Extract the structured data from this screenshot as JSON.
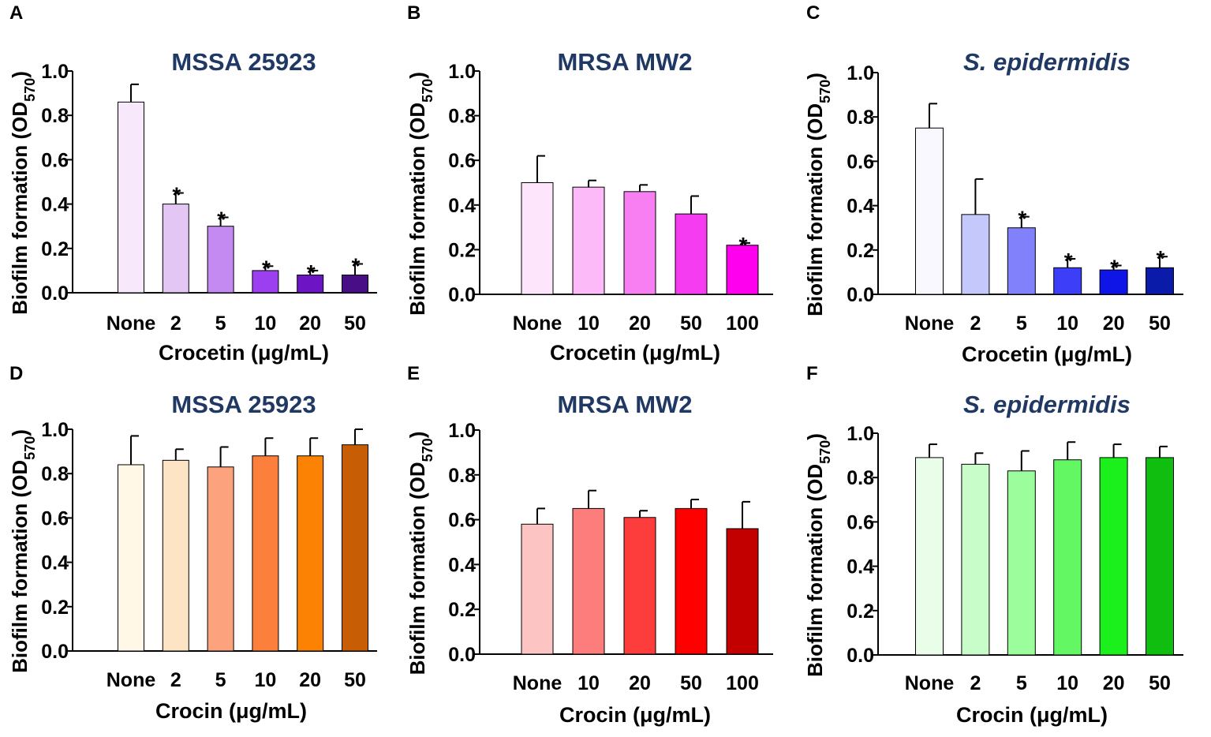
{
  "figure": {
    "title_color": "#1f3864",
    "axis_color": "#000000",
    "error_bar_color": "#000000"
  },
  "chart_data": [
    {
      "panel": "A",
      "type": "bar",
      "title": "MSSA 25923",
      "title_italic": false,
      "ylabel": "Biofilm formation (OD570)",
      "ylabel_main": "Biofilm formation (OD",
      "ylabel_sub": "570",
      "ylabel_close": ")",
      "xlabel": "Crocetin (μg/mL)",
      "categories": [
        "None",
        "2",
        "5",
        "10",
        "20",
        "50"
      ],
      "values": [
        0.86,
        0.4,
        0.3,
        0.1,
        0.08,
        0.08
      ],
      "errors": [
        0.08,
        0.05,
        0.04,
        0.02,
        0.02,
        0.05
      ],
      "significant": [
        false,
        true,
        true,
        true,
        true,
        true
      ],
      "marker": "*",
      "colors": [
        "#f7e9fb",
        "#e4c6f5",
        "#c48af2",
        "#9b3ff0",
        "#6d14c4",
        "#480e86"
      ],
      "ylim": [
        0,
        1.0
      ],
      "yticks": [
        "0.0",
        "0.2",
        "0.4",
        "0.6",
        "0.8",
        "1.0"
      ]
    },
    {
      "panel": "B",
      "type": "bar",
      "title": "MRSA MW2",
      "title_italic": false,
      "ylabel": "Biofilm formation (OD570)",
      "ylabel_main": "Biofilm formation (OD",
      "ylabel_sub": "570",
      "ylabel_close": ")",
      "xlabel": "Crocetin (μg/mL)",
      "categories": [
        "None",
        "10",
        "20",
        "50",
        "100"
      ],
      "values": [
        0.5,
        0.48,
        0.46,
        0.36,
        0.22
      ],
      "errors": [
        0.12,
        0.03,
        0.03,
        0.08,
        0.01
      ],
      "significant": [
        false,
        false,
        false,
        false,
        true
      ],
      "marker": "*",
      "colors": [
        "#fde6fb",
        "#fcbaf8",
        "#f77ff2",
        "#f53cf0",
        "#ff00ee"
      ],
      "ylim": [
        0,
        1.0
      ],
      "yticks": [
        "0.0",
        "0.2",
        "0.4",
        "0.6",
        "0.8",
        "1.0"
      ]
    },
    {
      "panel": "C",
      "type": "bar",
      "title": "S. epidermidis",
      "title_italic": true,
      "ylabel": "Biofilm formation (OD570)",
      "ylabel_main": "Biofilm formation (OD",
      "ylabel_sub": "570",
      "ylabel_close": ")",
      "xlabel": "Crocetin (μg/mL)",
      "categories": [
        "None",
        "2",
        "5",
        "10",
        "20",
        "50"
      ],
      "values": [
        0.75,
        0.36,
        0.3,
        0.12,
        0.11,
        0.12
      ],
      "errors": [
        0.11,
        0.16,
        0.05,
        0.04,
        0.02,
        0.05
      ],
      "significant": [
        false,
        false,
        true,
        true,
        true,
        true
      ],
      "marker": "*",
      "colors": [
        "#f8f8fe",
        "#c5c8fb",
        "#8081fb",
        "#3c3ff7",
        "#0f15e6",
        "#0a1aa9"
      ],
      "ylim": [
        0,
        1.0
      ],
      "yticks": [
        "0.0",
        "0.2",
        "0.4",
        "0.6",
        "0.8",
        "1.0"
      ]
    },
    {
      "panel": "D",
      "type": "bar",
      "title": "MSSA 25923",
      "title_italic": false,
      "ylabel": "Biofilm formation (OD570)",
      "ylabel_main": "Biofilm formation (OD",
      "ylabel_sub": "570",
      "ylabel_close": ")",
      "xlabel": "Crocin (μg/mL)",
      "categories": [
        "None",
        "2",
        "5",
        "10",
        "20",
        "50"
      ],
      "values": [
        0.84,
        0.86,
        0.83,
        0.88,
        0.88,
        0.93
      ],
      "errors": [
        0.13,
        0.05,
        0.09,
        0.08,
        0.08,
        0.07
      ],
      "significant": [
        false,
        false,
        false,
        false,
        false,
        false
      ],
      "marker": "*",
      "colors": [
        "#fff8e6",
        "#fde4c4",
        "#fca37e",
        "#fc7f3c",
        "#fb8203",
        "#c75e05"
      ],
      "ylim": [
        0,
        1.0
      ],
      "yticks": [
        "0.0",
        "0.2",
        "0.4",
        "0.6",
        "0.8",
        "1.0"
      ]
    },
    {
      "panel": "E",
      "type": "bar",
      "title": "MRSA MW2",
      "title_italic": false,
      "ylabel": "Biofilm formation (OD570)",
      "ylabel_main": "Biofilm formation (OD",
      "ylabel_sub": "570",
      "ylabel_close": ")",
      "xlabel": "Crocin (μg/mL)",
      "categories": [
        "None",
        "10",
        "20",
        "50",
        "100"
      ],
      "values": [
        0.58,
        0.65,
        0.61,
        0.65,
        0.56
      ],
      "errors": [
        0.07,
        0.08,
        0.03,
        0.04,
        0.12
      ],
      "significant": [
        false,
        false,
        false,
        false,
        false
      ],
      "marker": "*",
      "colors": [
        "#fdc4c4",
        "#fd7d7d",
        "#fd3c3c",
        "#fe0000",
        "#c20000"
      ],
      "ylim": [
        0,
        1.0
      ],
      "yticks": [
        "0.0",
        "0.2",
        "0.4",
        "0.6",
        "0.8",
        "1.0"
      ]
    },
    {
      "panel": "F",
      "type": "bar",
      "title": "S. epidermidis",
      "title_italic": true,
      "ylabel": "Biofilm formation (OD570)",
      "ylabel_main": "Biofilm formation (OD",
      "ylabel_sub": "570",
      "ylabel_close": ")",
      "xlabel": "Crocin (μg/mL)",
      "categories": [
        "None",
        "2",
        "5",
        "10",
        "20",
        "50"
      ],
      "values": [
        0.89,
        0.86,
        0.83,
        0.88,
        0.89,
        0.89
      ],
      "errors": [
        0.06,
        0.05,
        0.09,
        0.08,
        0.06,
        0.05
      ],
      "significant": [
        false,
        false,
        false,
        false,
        false,
        false
      ],
      "marker": "*",
      "colors": [
        "#e9fde9",
        "#c8fcc8",
        "#9cfd9c",
        "#63f763",
        "#1cf01c",
        "#10be10"
      ],
      "ylim": [
        0,
        1.0
      ],
      "yticks": [
        "0.0",
        "0.2",
        "0.4",
        "0.6",
        "0.8",
        "1.0"
      ]
    }
  ]
}
